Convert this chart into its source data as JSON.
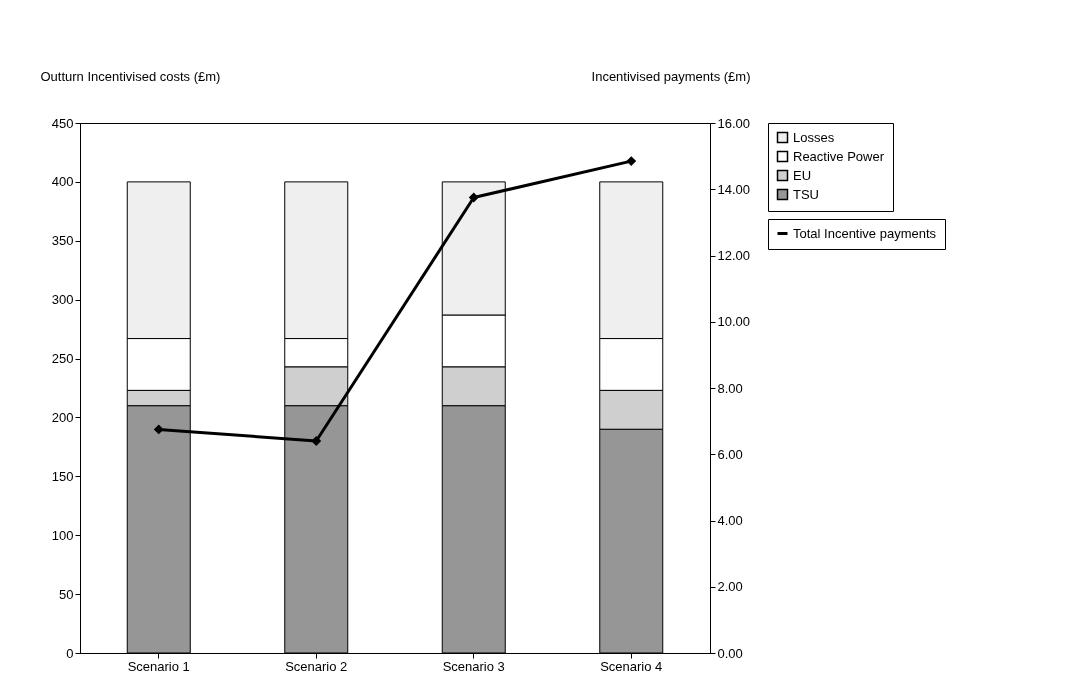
{
  "chart_data": {
    "type": "bar",
    "stacked": true,
    "xlabel": null,
    "ylabel": "Outturn Incentivised costs (£m)",
    "y2label": "Incentivised payments (£m)",
    "categories": [
      "Scenario 1",
      "Scenario 2",
      "Scenario 3",
      "Scenario 4"
    ],
    "series": [
      {
        "name": "TSU",
        "color": "#969696",
        "values": [
          210,
          210,
          210,
          190
        ]
      },
      {
        "name": "EU",
        "color": "#cfcfcf",
        "values": [
          13,
          33,
          33,
          33
        ]
      },
      {
        "name": "Reactive Power",
        "color": "#ffffff",
        "values": [
          44,
          24,
          44,
          44
        ]
      },
      {
        "name": "Losses",
        "color": "#efefef",
        "values": [
          133,
          133,
          113,
          133
        ]
      },
      {
        "name": "Total Incentive payments",
        "type": "line",
        "axis": "y2",
        "color": "#000000",
        "marker": "diamond",
        "values": [
          6.75,
          6.4,
          13.75,
          14.85
        ]
      }
    ],
    "ylim": [
      0,
      450
    ],
    "yticks": [
      0,
      50,
      100,
      150,
      200,
      250,
      300,
      350,
      400,
      450
    ],
    "y2lim": [
      0,
      16
    ],
    "y2ticks": [
      {
        "value": 0,
        "label": "0.00"
      },
      {
        "value": 2,
        "label": "2.00"
      },
      {
        "value": 4,
        "label": "4.00"
      },
      {
        "value": 6,
        "label": "6.00"
      },
      {
        "value": 8,
        "label": "8.00"
      },
      {
        "value": 10,
        "label": "10.00"
      },
      {
        "value": 12,
        "label": "12.00"
      },
      {
        "value": 14,
        "label": "14.00"
      },
      {
        "value": 16,
        "label": "16.00"
      }
    ],
    "legend": "right",
    "grid": false
  }
}
